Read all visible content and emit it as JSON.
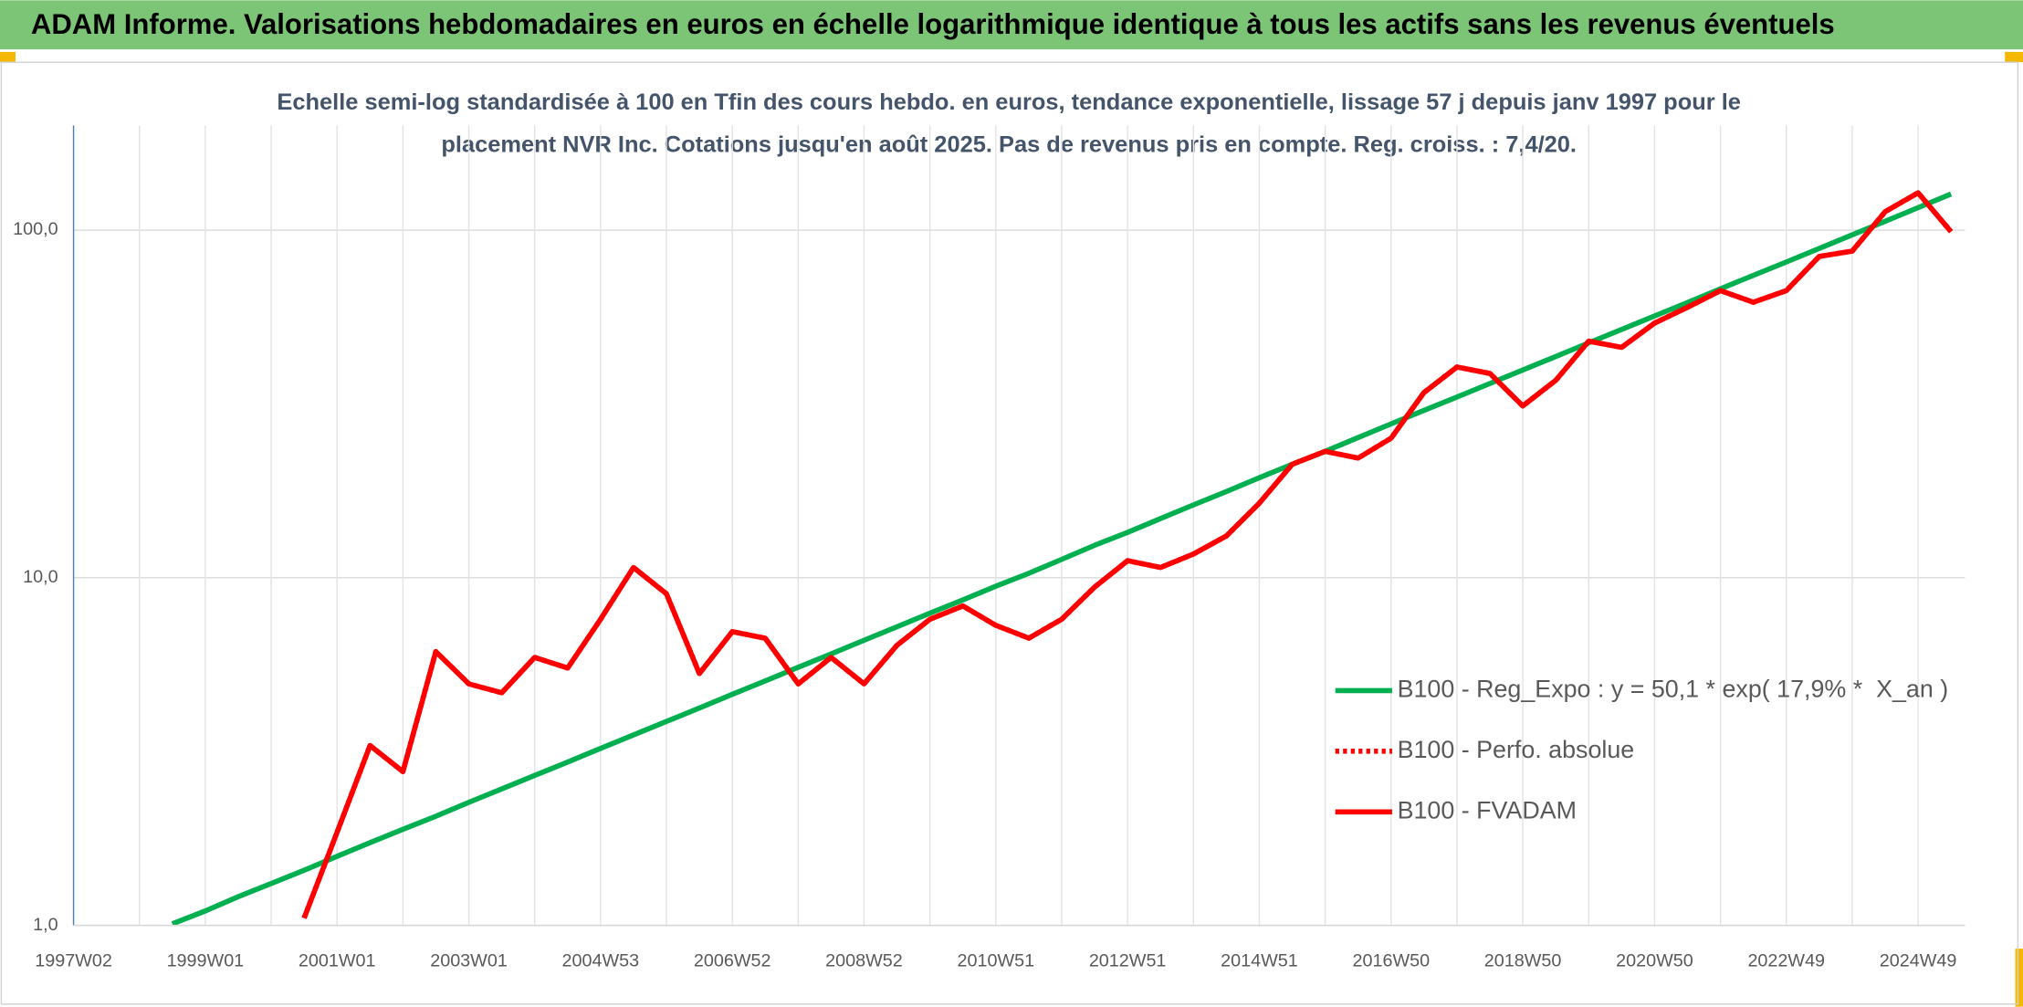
{
  "header": {
    "title": "ADAM Informe. Valorisations hebdomadaires en euros en échelle logarithmique identique à tous les actifs sans les revenus éventuels"
  },
  "chart_data": {
    "type": "line",
    "title": [
      "Echelle semi-log standardisée à 100 en Tfin des cours hebdo. en euros, tendance exponentielle, lissage 57 j depuis janv 1997 pour le",
      "placement NVR Inc. Cotations jusqu'en août 2025. Pas de revenus pris en compte. Reg. croiss. : 7,4/20."
    ],
    "categories": [
      "1997W02",
      null,
      null,
      null,
      "1999W01",
      null,
      null,
      null,
      "2001W01",
      null,
      null,
      null,
      "2003W01",
      null,
      null,
      null,
      "2004W53",
      null,
      null,
      null,
      "2006W52",
      null,
      null,
      null,
      "2008W52",
      null,
      null,
      null,
      "2010W51",
      null,
      null,
      null,
      "2012W51",
      null,
      null,
      null,
      "2014W51",
      null,
      null,
      null,
      "2016W50",
      null,
      null,
      null,
      "2018W50",
      null,
      null,
      null,
      "2020W50",
      null,
      null,
      null,
      "2022W49",
      null,
      null,
      null,
      "2024W49",
      null
    ],
    "log_y": true,
    "grid": true,
    "ylim": [
      1,
      200
    ],
    "yticks": [
      {
        "value": 1,
        "label": "1,0"
      },
      {
        "value": 10,
        "label": "10,0"
      },
      {
        "value": 100,
        "label": "100,0"
      }
    ],
    "series": [
      {
        "name": "B100 - Reg_Expo : y = 50,1 * exp( 17,9% *  X_an )",
        "color": "#00b050",
        "style": "solid",
        "values": [
          null,
          null,
          null,
          1.01,
          1.1,
          1.21,
          1.32,
          1.44,
          1.58,
          1.73,
          1.89,
          2.06,
          2.26,
          2.47,
          2.7,
          2.95,
          3.23,
          3.53,
          3.86,
          4.22,
          4.62,
          5.05,
          5.53,
          6.04,
          6.61,
          7.23,
          7.91,
          8.64,
          9.46,
          10.3,
          11.3,
          12.4,
          13.5,
          14.8,
          16.2,
          17.7,
          19.4,
          21.2,
          23.1,
          25.3,
          27.7,
          30.3,
          33.1,
          36.2,
          39.6,
          43.3,
          47.4,
          51.8,
          56.6,
          61.9,
          67.8,
          74.1,
          81.0,
          88.6,
          96.9,
          106,
          116,
          127
        ]
      },
      {
        "name": "B100 - Perfo. absolue",
        "color": "#ff0000",
        "style": "dotted",
        "values": [
          null,
          null,
          null,
          null,
          null,
          null,
          null,
          1.05,
          1.85,
          3.29,
          2.77,
          6.13,
          4.95,
          4.67,
          5.9,
          5.5,
          7.6,
          10.7,
          9.0,
          5.3,
          7.0,
          6.7,
          4.95,
          5.9,
          4.95,
          6.4,
          7.6,
          8.3,
          7.3,
          6.7,
          7.6,
          9.4,
          11.2,
          10.7,
          11.7,
          13.2,
          16.4,
          21.2,
          23.1,
          22.1,
          25.2,
          34.1,
          40.4,
          38.7,
          31.2,
          37.0,
          47.9,
          46,
          54,
          60,
          67,
          62,
          67,
          84,
          87,
          113,
          128,
          99
        ]
      },
      {
        "name": "B100 - FVADAM",
        "color": "#ff0000",
        "style": "solid",
        "values": [
          null,
          null,
          null,
          null,
          null,
          null,
          null,
          1.05,
          1.85,
          3.29,
          2.77,
          6.13,
          4.95,
          4.67,
          5.9,
          5.5,
          7.6,
          10.7,
          9.0,
          5.3,
          7.0,
          6.7,
          4.95,
          5.9,
          4.95,
          6.4,
          7.6,
          8.3,
          7.3,
          6.7,
          7.6,
          9.4,
          11.2,
          10.7,
          11.7,
          13.2,
          16.4,
          21.2,
          23.1,
          22.1,
          25.2,
          34.1,
          40.4,
          38.7,
          31.2,
          37.0,
          47.9,
          46,
          54,
          60,
          67,
          62,
          67,
          84,
          87,
          113,
          128,
          99
        ]
      }
    ]
  }
}
